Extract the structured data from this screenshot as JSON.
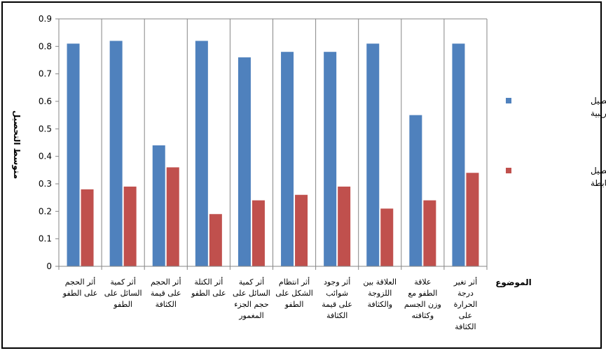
{
  "chart_data": {
    "type": "bar",
    "title": "",
    "xlabel": "الموضوع",
    "ylabel": "متوسط التحصيل",
    "ylim": [
      0,
      0.9
    ],
    "yticks": [
      "0",
      "0.1",
      "0.2",
      "0.3",
      "0.4",
      "0.5",
      "0.6",
      "0.7",
      "0.8",
      "0.9"
    ],
    "grid": "vertical category separators",
    "legend_position": "right",
    "categories": [
      [
        "أثر الحجم",
        "على الطفو"
      ],
      [
        "أثر كمية",
        "السائل على",
        "الطفو"
      ],
      [
        "أثر الحجم",
        "على قيمة",
        "الكثافة"
      ],
      [
        "أثر الكتلة",
        "على الطفو"
      ],
      [
        "أثر كمية",
        "السائل على",
        "حجم الجزء",
        "المغمور"
      ],
      [
        "أثر انتظام",
        "الشكل على",
        "الطفو"
      ],
      [
        "أثر وجود",
        "شوائب",
        "على قيمة",
        "الكثافة"
      ],
      [
        "العلاقة بين",
        "اللزوجة",
        "والكثافة"
      ],
      [
        "علاقة",
        "الطفو مع",
        "وزن الجسم",
        "وكثافته"
      ],
      [
        "أثر تغير",
        "درجة",
        "الحرارة",
        "على",
        "الكثافة"
      ]
    ],
    "series": [
      {
        "name": [
          "متوسط التحصيل",
          "للمجموعة التجريبية"
        ],
        "color": "#4F81BD",
        "values": [
          0.81,
          0.82,
          0.44,
          0.82,
          0.76,
          0.78,
          0.78,
          0.81,
          0.55,
          0.81
        ]
      },
      {
        "name": [
          "متوسط التحصيل",
          "للمجموعة الضابطة"
        ],
        "color": "#C0504D",
        "values": [
          0.28,
          0.29,
          0.36,
          0.19,
          0.24,
          0.26,
          0.29,
          0.21,
          0.24,
          0.34
        ]
      }
    ]
  }
}
